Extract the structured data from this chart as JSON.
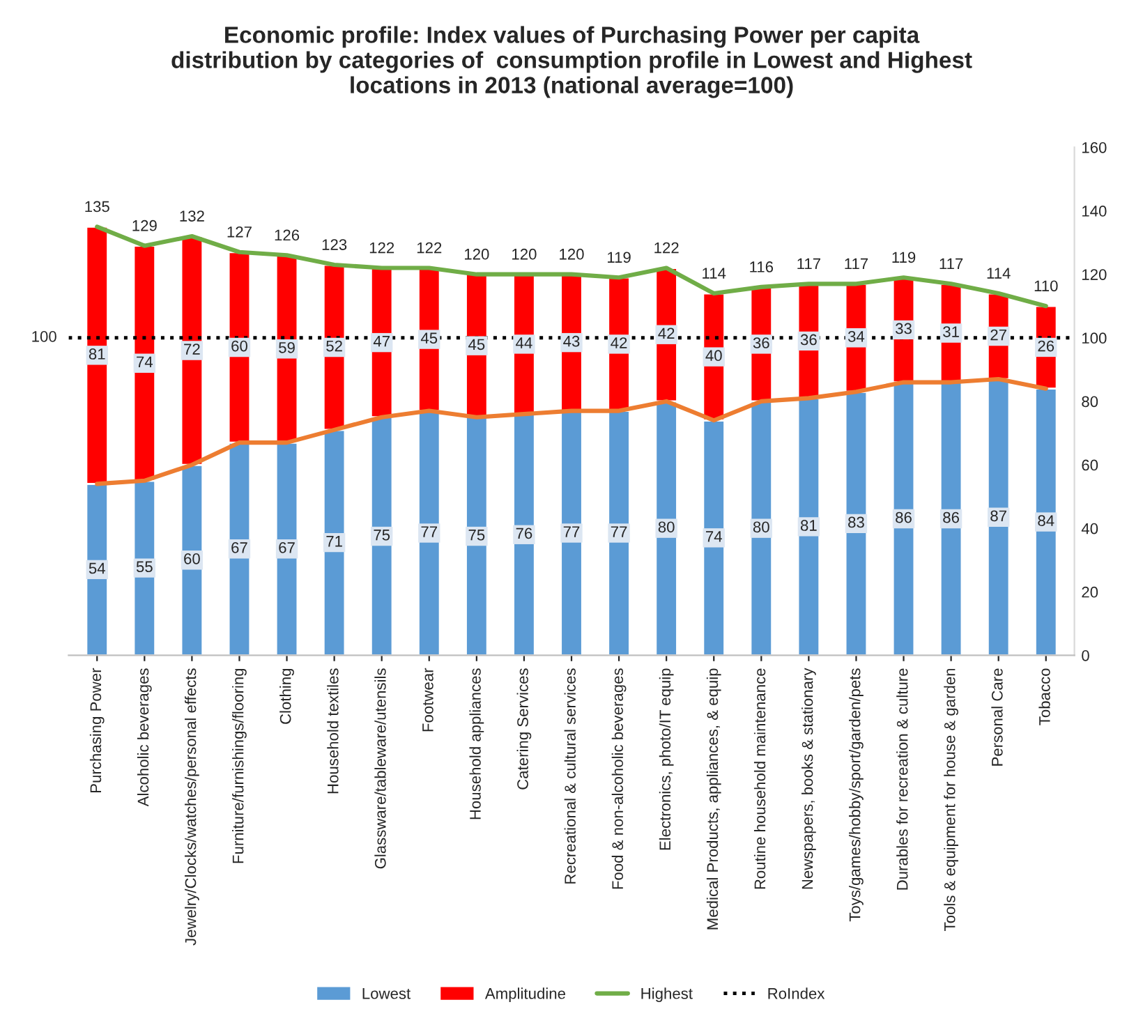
{
  "chart_data": {
    "type": "bar",
    "stacked": true,
    "title": "Economic profile: Index values of Purchasing Power per capita\ndistribution by categories of  consumption profile in Lowest and Highest\nlocations in 2013 (national average=100)",
    "categories": [
      "Purchasing Power",
      "Alcoholic beverages",
      "Jewelry/Clocks/watches/personal effects",
      "Furniture/furnishings/flooring",
      "Clothing",
      "Household textiles",
      "Glassware/tableware/utensils",
      "Footwear",
      "Household appliances",
      "Catering Services",
      "Recreational & cultural services",
      "Food & non-alcoholic beverages",
      "Electronics, photo/IT equip",
      "Medical Products, appliances, & equip",
      "Routine household maintenance",
      "Newspapers, books & stationary",
      "Toys/games/hobby/sport/garden/pets",
      "Durables for recreation & culture",
      "Tools & equipment for house & garden",
      "Personal Care",
      "Tobacco"
    ],
    "series": [
      {
        "name": "Lowest",
        "color": "#5b9bd5",
        "values": [
          54,
          55,
          60,
          67,
          67,
          71,
          75,
          77,
          75,
          76,
          77,
          77,
          80,
          74,
          80,
          81,
          83,
          86,
          86,
          87,
          84
        ],
        "value_labels": [
          "54",
          "55",
          "60",
          "67",
          "67",
          "71",
          "75",
          "77",
          "75",
          "76",
          "77",
          "77",
          "80",
          "74",
          "80",
          "81",
          "83",
          "86",
          "86",
          "87",
          "84"
        ]
      },
      {
        "name": "Amplitudine",
        "color": "#ff0000",
        "values": [
          81,
          74,
          72,
          60,
          59,
          52,
          47,
          45,
          45,
          44,
          43,
          42,
          42,
          40,
          36,
          36,
          34,
          33,
          31,
          27,
          26
        ],
        "value_labels": [
          "81",
          "74",
          "72",
          "60",
          "59",
          "52",
          "47",
          "45",
          "45",
          "44",
          "43",
          "42",
          "42",
          "40",
          "36",
          "36",
          "34",
          "33",
          "31",
          "27",
          "26"
        ]
      },
      {
        "type": "line",
        "color": "#ed7d31",
        "values": [
          54,
          55,
          60,
          67,
          67,
          71,
          75,
          77,
          75,
          76,
          77,
          77,
          80,
          74,
          80,
          81,
          83,
          86,
          86,
          87,
          84
        ]
      },
      {
        "name": "Highest",
        "type": "line",
        "color": "#70ad47",
        "values": [
          135,
          129,
          132,
          127,
          126,
          123,
          122,
          122,
          120,
          120,
          120,
          119,
          122,
          114,
          116,
          117,
          117,
          119,
          117,
          114,
          110
        ],
        "value_labels": [
          "135",
          "129",
          "132",
          "127",
          "126",
          "123",
          "122",
          "122",
          "120",
          "120",
          "120",
          "119",
          "122",
          "114",
          "116",
          "117",
          "117",
          "119",
          "117",
          "114",
          "110"
        ]
      }
    ],
    "ylim": [
      0,
      160
    ],
    "yticks": [
      0,
      20,
      40,
      60,
      80,
      100,
      120,
      140,
      160
    ],
    "ref_lines": [
      {
        "axis": "y",
        "value": 100,
        "label": "RoIndex",
        "color": "#000000",
        "line_style": "dotted"
      }
    ],
    "annotations": [
      "100"
    ],
    "legend": "bottom",
    "grid": false
  }
}
